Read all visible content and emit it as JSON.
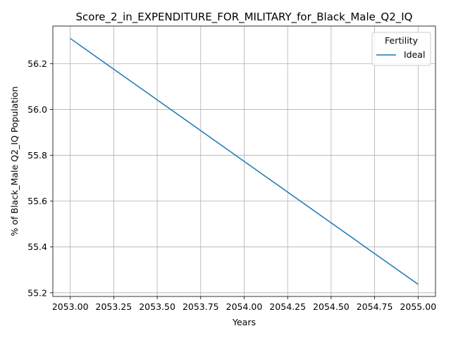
{
  "chart_data": {
    "type": "line",
    "title": "Score_2_in_EXPENDITURE_FOR_MILITARY_for_Black_Male_Q2_IQ",
    "xlabel": "Years",
    "ylabel": "% of Black_Male Q2_IQ Population",
    "xlim": [
      2052.9,
      2055.1
    ],
    "ylim": [
      55.184,
      56.364
    ],
    "x_ticks": [
      2053.0,
      2053.25,
      2053.5,
      2053.75,
      2054.0,
      2054.25,
      2054.5,
      2054.75,
      2055.0
    ],
    "x_tick_labels": [
      "2053.00",
      "2053.25",
      "2053.50",
      "2053.75",
      "2054.00",
      "2054.25",
      "2054.50",
      "2054.75",
      "2055.00"
    ],
    "y_ticks": [
      55.2,
      55.4,
      55.6,
      55.8,
      56.0,
      56.2
    ],
    "y_tick_labels": [
      "55.2",
      "55.4",
      "55.6",
      "55.8",
      "56.0",
      "56.2"
    ],
    "grid": true,
    "legend": {
      "title": "Fertility",
      "position": "top-right"
    },
    "series": [
      {
        "name": "Ideal",
        "color": "#1f77b4",
        "x": [
          2053,
          2055
        ],
        "y": [
          56.31,
          55.237
        ]
      }
    ]
  }
}
